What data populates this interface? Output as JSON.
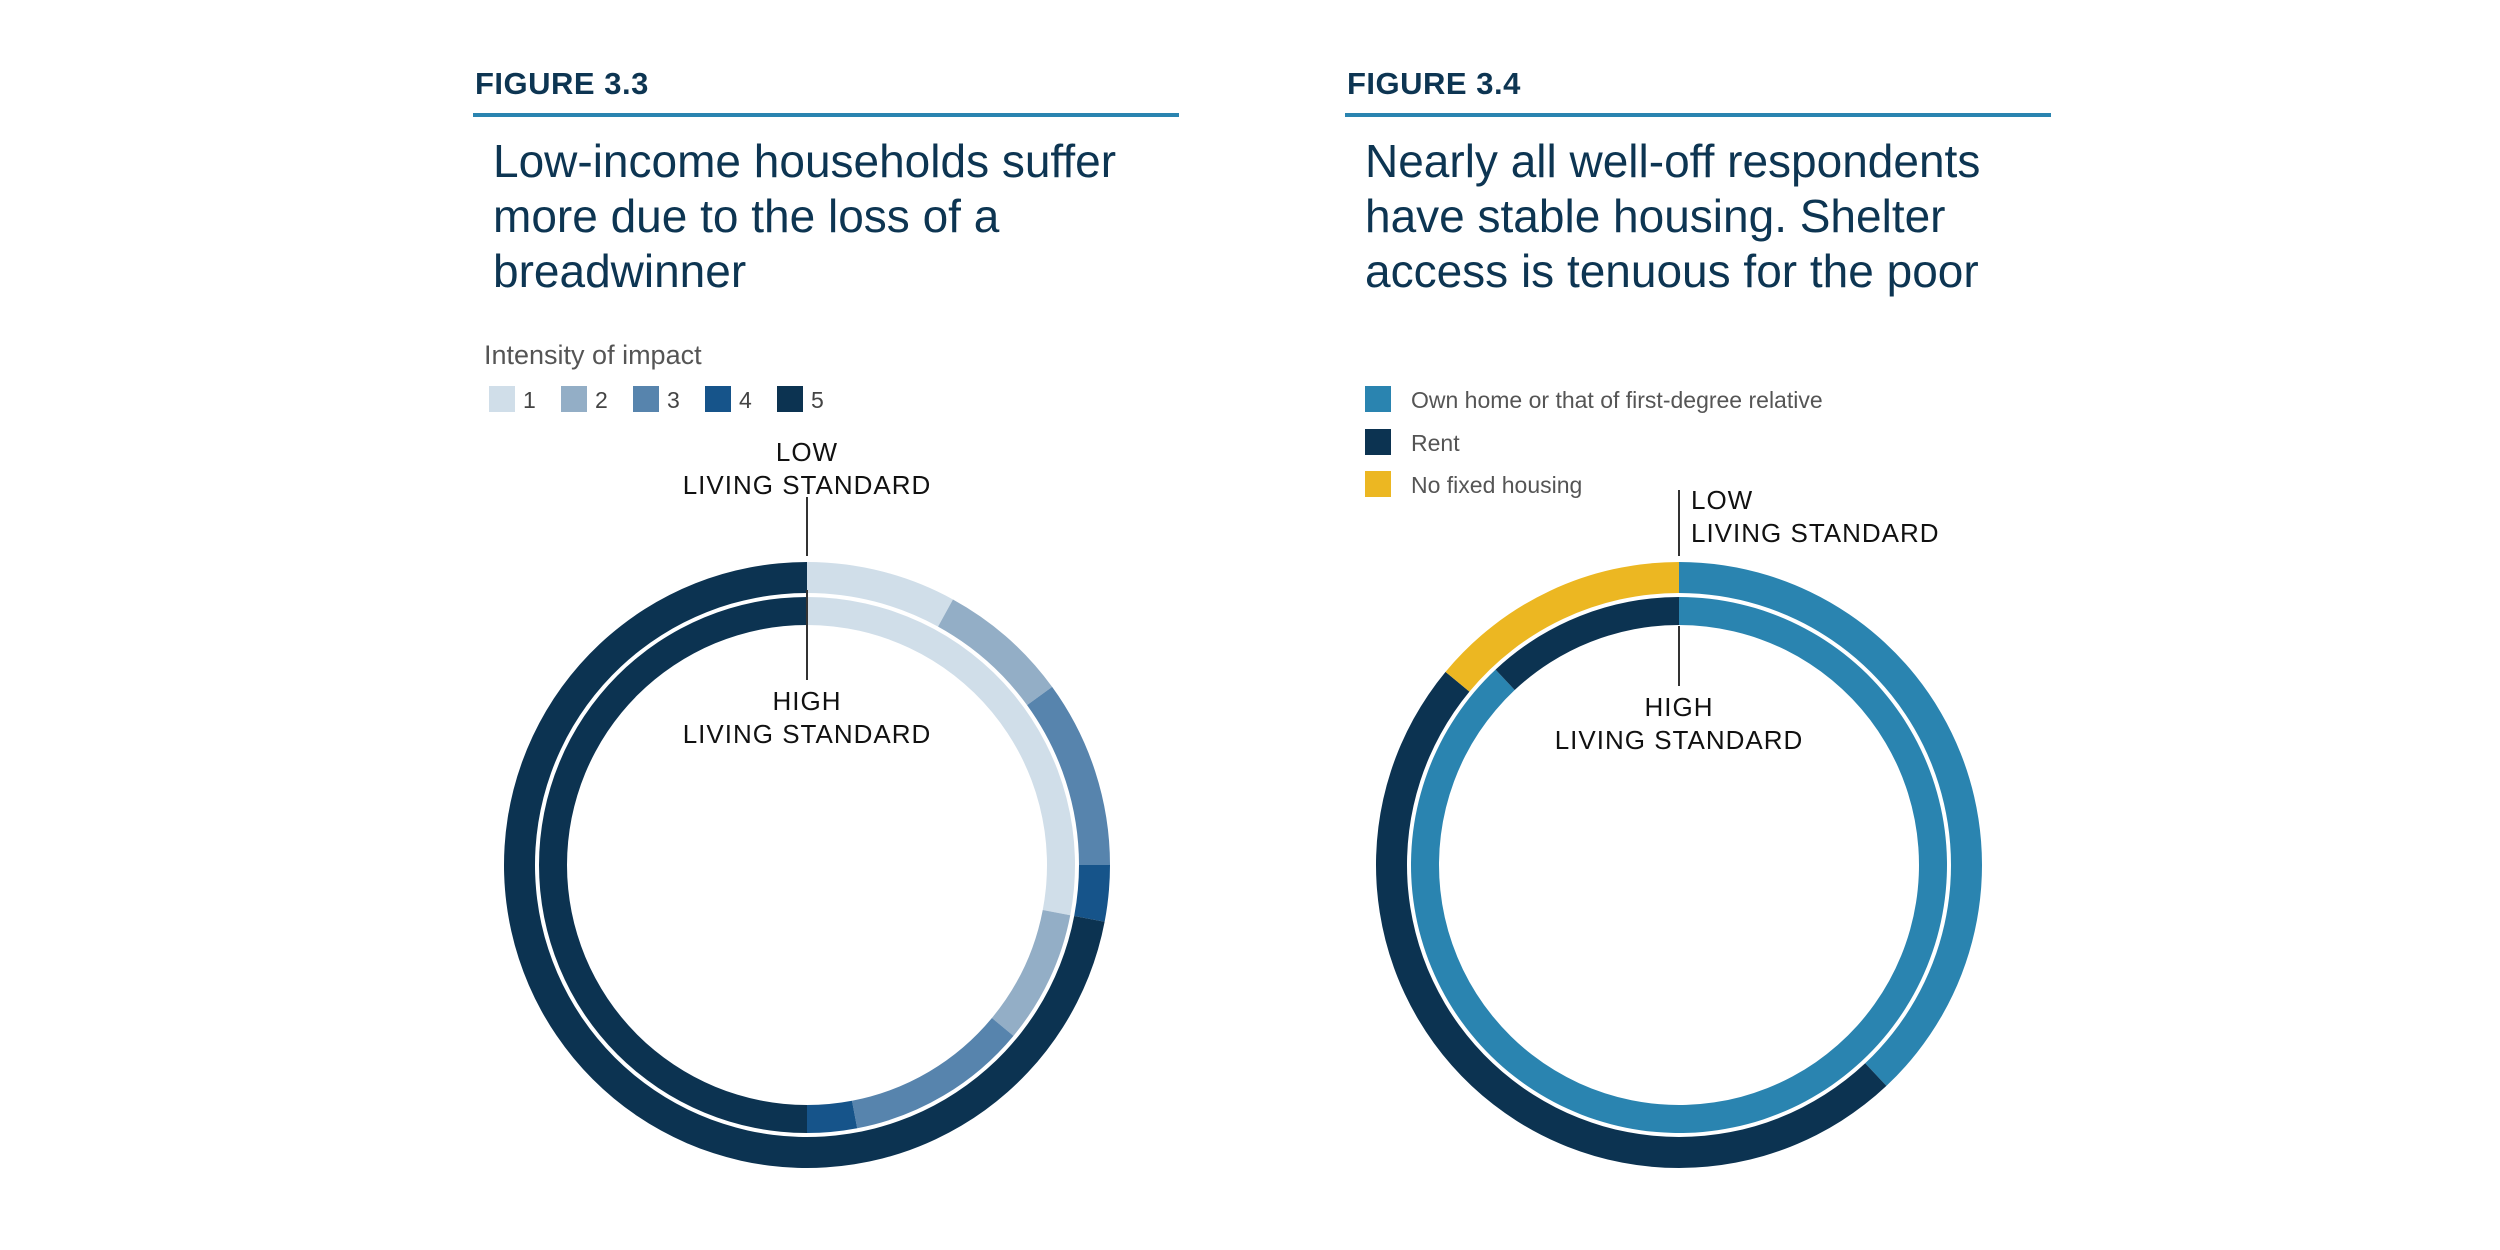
{
  "colors": {
    "scale": [
      "#d0dee9",
      "#93aec6",
      "#5784ad",
      "#16548a",
      "#0c3351"
    ],
    "own": "#2a84b0",
    "rent": "#0c3351",
    "nofixed": "#ecb722",
    "rule": "#2a84b0",
    "text": "#0d3552"
  },
  "figures": [
    {
      "figure_label": "FIGURE 3.3",
      "title": "Low-income households suffer more due to the loss of a breadwinner",
      "legend_title": "Intensity of impact",
      "legend_items": [
        "1",
        "2",
        "3",
        "4",
        "5"
      ],
      "outer_label": [
        "LOW",
        "LIVING STANDARD"
      ],
      "inner_label": [
        "HIGH",
        "LIVING STANDARD"
      ]
    },
    {
      "figure_label": "FIGURE 3.4",
      "title": "Nearly all well-off respondents have stable housing. Shelter access is tenuous for the poor",
      "legend_items": [
        "Own home or that of first-degree relative",
        "Rent",
        "No fixed housing"
      ],
      "outer_label": [
        "LOW",
        "LIVING STANDARD"
      ],
      "inner_label": [
        "HIGH",
        "LIVING STANDARD"
      ]
    }
  ],
  "chart_data": [
    {
      "type": "donut",
      "title": "Low-income households suffer more due to the loss of a breadwinner",
      "legend_title": "Intensity of impact",
      "categories": [
        "1",
        "2",
        "3",
        "4",
        "5"
      ],
      "series": [
        {
          "name": "LOW LIVING STANDARD",
          "ring": "outer",
          "values": [
            8,
            7,
            10,
            3,
            72
          ]
        },
        {
          "name": "HIGH LIVING STANDARD",
          "ring": "inner",
          "values": [
            28,
            8,
            11,
            3,
            50
          ]
        }
      ],
      "unit": "%"
    },
    {
      "type": "donut",
      "title": "Nearly all well-off respondents have stable housing. Shelter access is tenuous for the poor",
      "categories": [
        "Own home or that of first-degree relative",
        "Rent",
        "No fixed housing"
      ],
      "series": [
        {
          "name": "LOW LIVING STANDARD",
          "ring": "outer",
          "values": [
            38,
            48,
            14
          ]
        },
        {
          "name": "HIGH LIVING STANDARD",
          "ring": "inner",
          "values": [
            88,
            12,
            0
          ]
        }
      ],
      "unit": "%"
    }
  ]
}
